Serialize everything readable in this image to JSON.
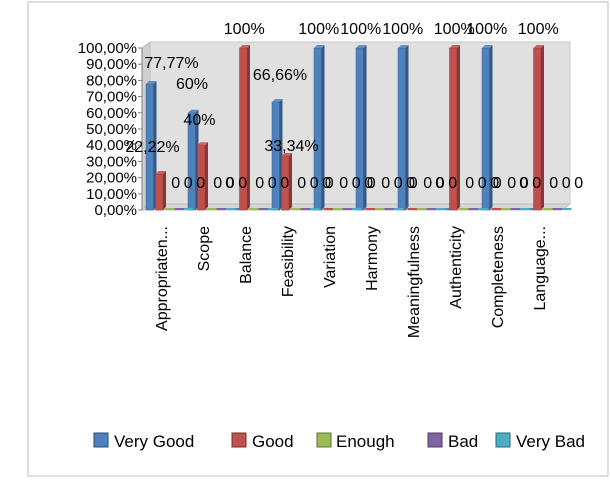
{
  "chart_data": {
    "type": "bar",
    "title": "",
    "xlabel": "",
    "ylabel": "",
    "ylim": [
      0,
      1
    ],
    "y_ticks": [
      "0,00%",
      "10,00%",
      "20,00%",
      "30,00%",
      "40,00%",
      "50,00%",
      "60,00%",
      "70,00%",
      "80,00%",
      "90,00%",
      "100,00%"
    ],
    "grid": false,
    "legend_position": "bottom",
    "categories": [
      "Appropriaten...",
      "Scope",
      "Balance",
      "Feasibility",
      "Variation",
      "Harmony",
      "Meaningfulness",
      "Authenticity",
      "Completeness",
      "Language..."
    ],
    "series": [
      {
        "name": "Very Good",
        "color": "#4f81bd",
        "values": [
          0.7777,
          0.6,
          0,
          0.6666,
          1,
          1,
          1,
          0,
          1,
          0
        ],
        "labels": [
          "77,77%",
          "60%",
          "0",
          "66,66%",
          "100%",
          "100%",
          "100%",
          "0",
          "100%",
          "0"
        ]
      },
      {
        "name": "Good",
        "color": "#c0504d",
        "values": [
          0.2222,
          0.4,
          1,
          0.3334,
          0,
          0,
          0,
          1,
          0,
          1
        ],
        "labels": [
          "22,22%",
          "40%",
          "100%",
          "33,34%",
          "0",
          "0",
          "0",
          "100%",
          "0",
          "100%"
        ]
      },
      {
        "name": "Enough",
        "color": "#9bbb59",
        "values": [
          0,
          0,
          0,
          0,
          0,
          0,
          0,
          0,
          0,
          0
        ],
        "labels": [
          "0",
          "0",
          "0",
          "0",
          "0",
          "0",
          "0",
          "0",
          "0",
          "0"
        ]
      },
      {
        "name": "Bad",
        "color": "#8064a2",
        "values": [
          0,
          0,
          0,
          0,
          0,
          0,
          0,
          0,
          0,
          0
        ],
        "labels": [
          "0",
          "0",
          "0",
          "0",
          "0",
          "0",
          "0",
          "0",
          "0",
          "0"
        ]
      },
      {
        "name": "Very Bad",
        "color": "#4bacc6",
        "values": [
          0,
          0,
          0,
          0,
          0,
          0,
          0,
          0,
          0,
          0
        ],
        "labels": [
          "0",
          "0",
          "0",
          "0",
          "0",
          "0",
          "0",
          "0",
          "0",
          "0"
        ]
      }
    ]
  }
}
